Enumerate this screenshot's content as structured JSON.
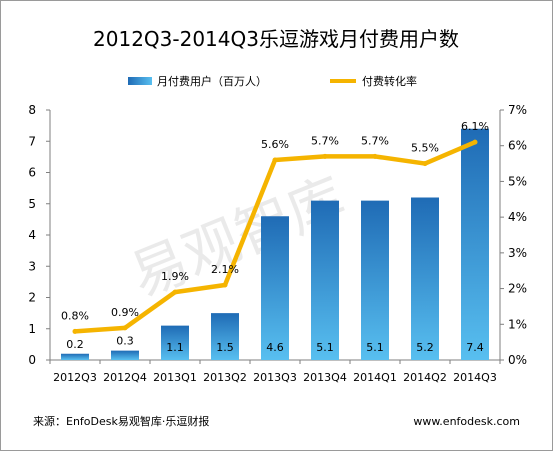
{
  "chart_data": {
    "type": "bar+line",
    "title": "2012Q3-2014Q3乐逗游戏月付费用户数",
    "categories": [
      "2012Q3",
      "2012Q4",
      "2013Q1",
      "2013Q2",
      "2013Q3",
      "2013Q4",
      "2014Q1",
      "2014Q2",
      "2014Q3"
    ],
    "series": [
      {
        "name": "月付费用户（百万人）",
        "type": "bar",
        "axis": "left",
        "values": [
          0.2,
          0.3,
          1.1,
          1.5,
          4.6,
          5.1,
          5.1,
          5.2,
          7.4
        ],
        "labels": [
          "0.2",
          "0.3",
          "1.1",
          "1.5",
          "4.6",
          "5.1",
          "5.1",
          "5.2",
          "7.4"
        ]
      },
      {
        "name": "付费转化率",
        "type": "line",
        "axis": "right",
        "values": [
          0.8,
          0.9,
          1.9,
          2.1,
          5.6,
          5.7,
          5.7,
          5.5,
          6.1
        ],
        "labels": [
          "0.8%",
          "0.9%",
          "1.9%",
          "2.1%",
          "5.6%",
          "5.7%",
          "5.7%",
          "5.5%",
          "6.1%"
        ]
      }
    ],
    "y_left": {
      "min": 0,
      "max": 8,
      "ticks": [
        "0",
        "1",
        "2",
        "3",
        "4",
        "5",
        "6",
        "7",
        "8"
      ]
    },
    "y_right": {
      "min": 0,
      "max": 7,
      "ticks": [
        "0%",
        "1%",
        "2%",
        "3%",
        "4%",
        "5%",
        "6%",
        "7%"
      ]
    },
    "grid": false,
    "legend_position": "top",
    "colors": {
      "bar_top": "#1f6bb5",
      "bar_bottom": "#58bff0",
      "line": "#f5b400",
      "axis": "#7f7f7f",
      "text": "#000000"
    }
  },
  "watermark": "易观智库",
  "footer": {
    "source": "来源：EnfoDesk易观智库·乐逗财报",
    "website": "www.enfodesk.com"
  }
}
